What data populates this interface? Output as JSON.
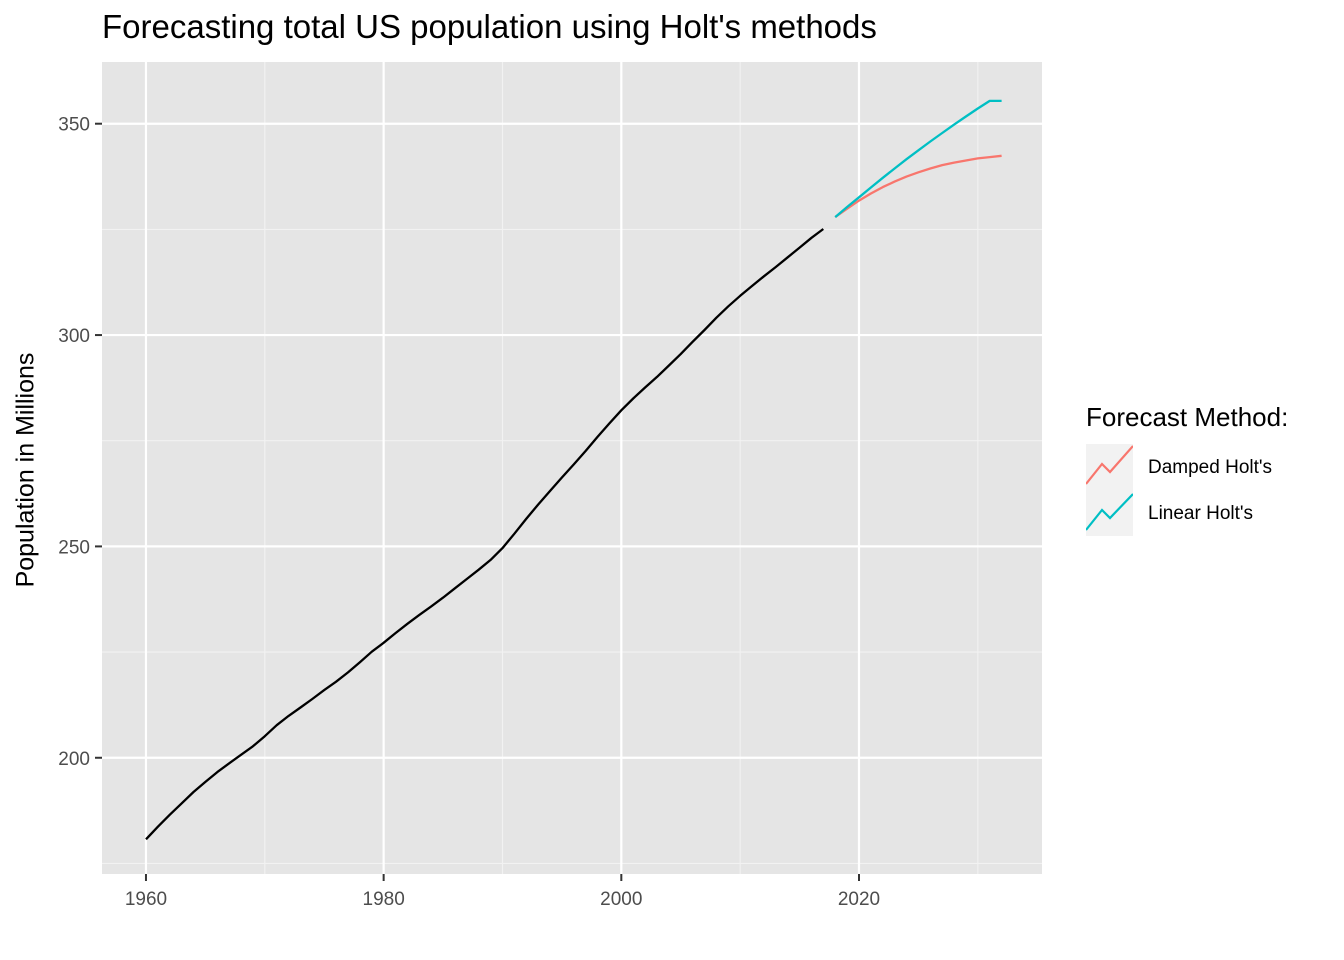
{
  "chart_data": {
    "type": "line",
    "title": "Forecasting total US population using Holt's methods",
    "xlabel": "",
    "ylabel": "Population in Millions",
    "xlim": [
      1956.3,
      2035.4
    ],
    "ylim": [
      172.5,
      364.6
    ],
    "x_ticks": [
      1960,
      1980,
      2000,
      2020
    ],
    "y_ticks": [
      200,
      250,
      300,
      350
    ],
    "grid": true,
    "legend": {
      "title": "Forecast Method:",
      "position": "right"
    },
    "series": [
      {
        "color": "#000000",
        "x": [
          1960,
          1961,
          1962,
          1963,
          1964,
          1965,
          1966,
          1967,
          1968,
          1969,
          1970,
          1971,
          1972,
          1973,
          1974,
          1975,
          1976,
          1977,
          1978,
          1979,
          1980,
          1981,
          1982,
          1983,
          1984,
          1985,
          1986,
          1987,
          1988,
          1989,
          1990,
          1991,
          1992,
          1993,
          1994,
          1995,
          1996,
          1997,
          1998,
          1999,
          2000,
          2001,
          2002,
          2003,
          2004,
          2005,
          2006,
          2007,
          2008,
          2009,
          2010,
          2011,
          2012,
          2013,
          2014,
          2015,
          2016,
          2017
        ],
        "values": [
          180.7,
          183.7,
          186.5,
          189.2,
          191.9,
          194.3,
          196.6,
          198.7,
          200.7,
          202.7,
          205.1,
          207.7,
          209.9,
          211.9,
          213.9,
          216.0,
          218.0,
          220.2,
          222.6,
          225.1,
          227.2,
          229.5,
          231.7,
          233.8,
          235.8,
          237.9,
          240.1,
          242.3,
          244.5,
          246.8,
          249.6,
          253.0,
          256.5,
          259.9,
          263.1,
          266.3,
          269.4,
          272.6,
          275.9,
          279.1,
          282.2,
          285.0,
          287.6,
          290.1,
          292.8,
          295.5,
          298.4,
          301.2,
          304.1,
          306.8,
          309.3,
          311.6,
          313.9,
          316.1,
          318.4,
          320.7,
          323.0,
          325.1
        ]
      },
      {
        "name": "Damped Holt's",
        "color": "#F8766D",
        "x": [
          2018,
          2019,
          2020,
          2021,
          2022,
          2023,
          2024,
          2025,
          2026,
          2027,
          2028,
          2029,
          2030,
          2031,
          2032
        ],
        "values": [
          327.9,
          329.9,
          331.8,
          333.5,
          335.0,
          336.3,
          337.5,
          338.5,
          339.4,
          340.2,
          340.8,
          341.3,
          341.8,
          342.1,
          342.4
        ]
      },
      {
        "name": "Linear Holt's",
        "color": "#00BFC4",
        "x": [
          2018,
          2019,
          2020,
          2021,
          2022,
          2023,
          2024,
          2025,
          2026,
          2027,
          2028,
          2029,
          2030,
          2031,
          2032
        ],
        "values": [
          327.9,
          330.3,
          332.6,
          334.9,
          337.2,
          339.4,
          341.6,
          343.7,
          345.8,
          347.8,
          349.8,
          351.7,
          353.6,
          355.4,
          355.4
        ]
      }
    ]
  }
}
